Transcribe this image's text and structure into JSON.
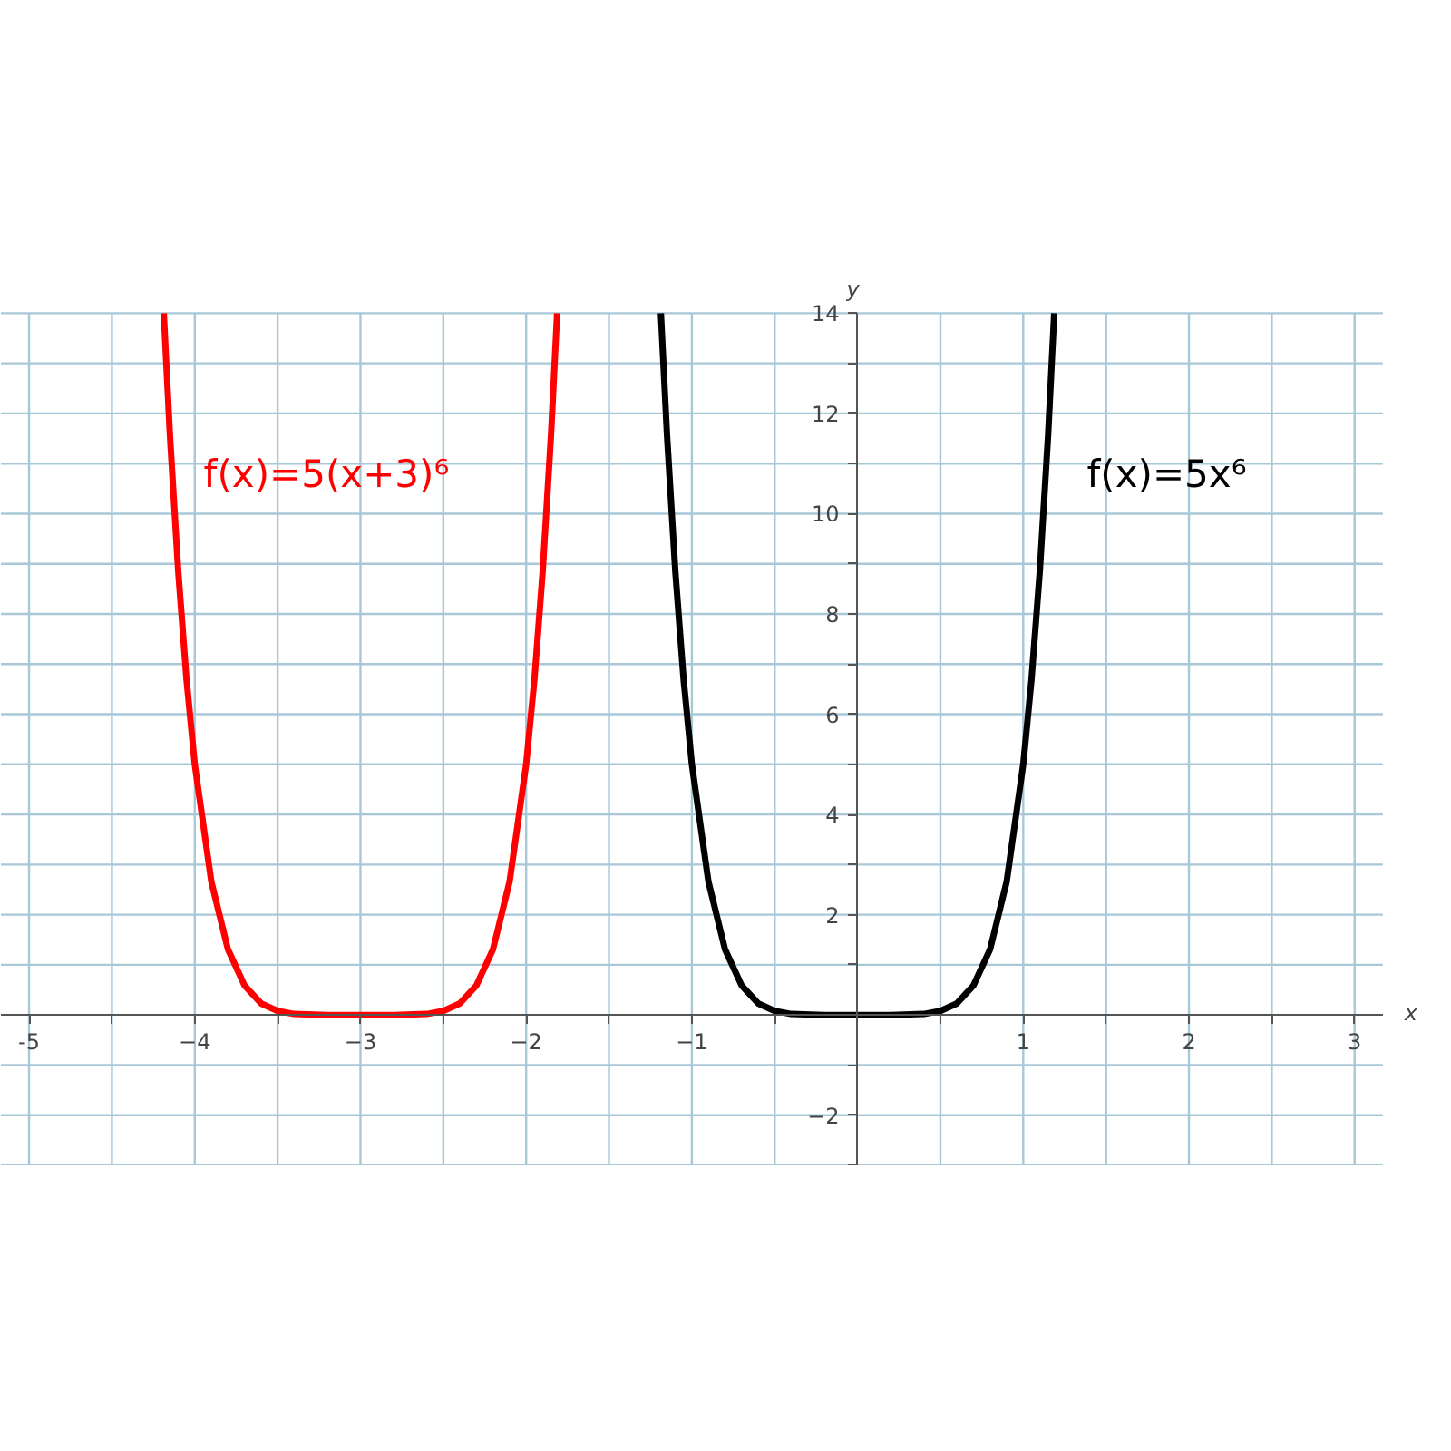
{
  "chart_data": {
    "type": "line",
    "xlabel": "x",
    "ylabel": "y",
    "xlim": [
      -5.17,
      3.17
    ],
    "ylim": [
      -3,
      14
    ],
    "xticks": [
      -5,
      {
        "value": -4.5,
        "label": null
      },
      {
        "value": -4,
        "label": "−4"
      },
      {
        "value": -3.5,
        "label": null
      },
      {
        "value": -3,
        "label": "−3"
      },
      {
        "value": -2.5,
        "label": null
      },
      {
        "value": -2,
        "label": "−2"
      },
      {
        "value": -1.5,
        "label": null
      },
      {
        "value": -1,
        "label": "−1"
      },
      {
        "value": -0.5,
        "label": null
      },
      {
        "value": 0.5,
        "label": null
      },
      1,
      {
        "value": 1.5,
        "label": null
      },
      2,
      {
        "value": 2.5,
        "label": null
      },
      3
    ],
    "yticks": [
      {
        "value": -3,
        "label": null
      },
      {
        "value": -2,
        "label": "−2"
      },
      {
        "value": -1,
        "label": null
      },
      {
        "value": 1,
        "label": null
      },
      2,
      {
        "value": 3,
        "label": null
      },
      4,
      {
        "value": 5,
        "label": null
      },
      6,
      {
        "value": 7,
        "label": null
      },
      8,
      {
        "value": 9,
        "label": null
      },
      10,
      {
        "value": 11,
        "label": null
      },
      12,
      {
        "value": 13,
        "label": null
      },
      14
    ],
    "grid": true,
    "line_style": "solid",
    "marker": "none",
    "series": [
      {
        "name": "f(x)=5(x+3)⁶",
        "color": "#ff0000",
        "x": [
          -4.187,
          -4.15,
          -4.1,
          -4.05,
          -4.0,
          -3.9,
          -3.8,
          -3.7,
          -3.6,
          -3.5,
          -3.4,
          -3.2,
          -3.0,
          -2.8,
          -2.6,
          -2.5,
          -2.4,
          -2.3,
          -2.2,
          -2.1,
          -2.0,
          -1.95,
          -1.9,
          -1.85,
          -1.813
        ],
        "values": [
          14.0,
          11.57,
          8.86,
          6.7,
          5.0,
          2.66,
          1.31,
          0.59,
          0.23,
          0.08,
          0.02,
          0,
          0,
          0,
          0.02,
          0.08,
          0.23,
          0.59,
          1.31,
          2.66,
          5.0,
          6.7,
          8.86,
          11.57,
          14.0
        ]
      },
      {
        "name": "f(x)=5x⁶",
        "color": "#000000",
        "x": [
          -1.187,
          -1.15,
          -1.1,
          -1.05,
          -1.0,
          -0.9,
          -0.8,
          -0.7,
          -0.6,
          -0.5,
          -0.4,
          -0.2,
          0,
          0.2,
          0.4,
          0.5,
          0.6,
          0.7,
          0.8,
          0.9,
          1.0,
          1.05,
          1.1,
          1.15,
          1.187
        ],
        "values": [
          14.0,
          11.57,
          8.86,
          6.7,
          5.0,
          2.66,
          1.31,
          0.59,
          0.23,
          0.08,
          0.02,
          0,
          0,
          0,
          0.02,
          0.08,
          0.23,
          0.59,
          1.31,
          2.66,
          5.0,
          6.7,
          8.86,
          11.57,
          14.0
        ]
      }
    ]
  }
}
